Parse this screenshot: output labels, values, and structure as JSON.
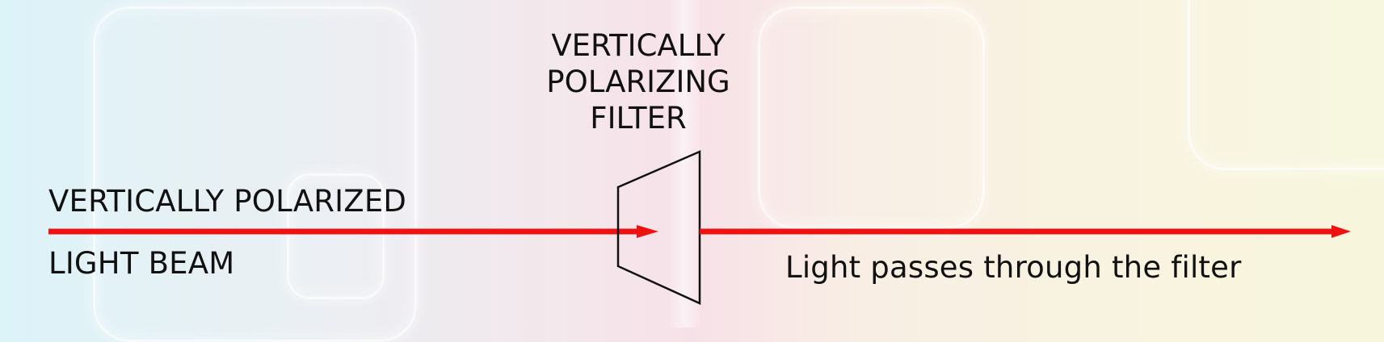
{
  "labels": {
    "beam_line1": "VERTICALLY POLARIZED",
    "beam_line2": "LIGHT BEAM",
    "filter_line1": "VERTICALLY",
    "filter_line2": "POLARIZING",
    "filter_line3": "FILTER",
    "result": "Light passes through the filter"
  },
  "colors": {
    "beam": "#ee1111",
    "filter_stroke": "#111111",
    "text": "#111111"
  }
}
